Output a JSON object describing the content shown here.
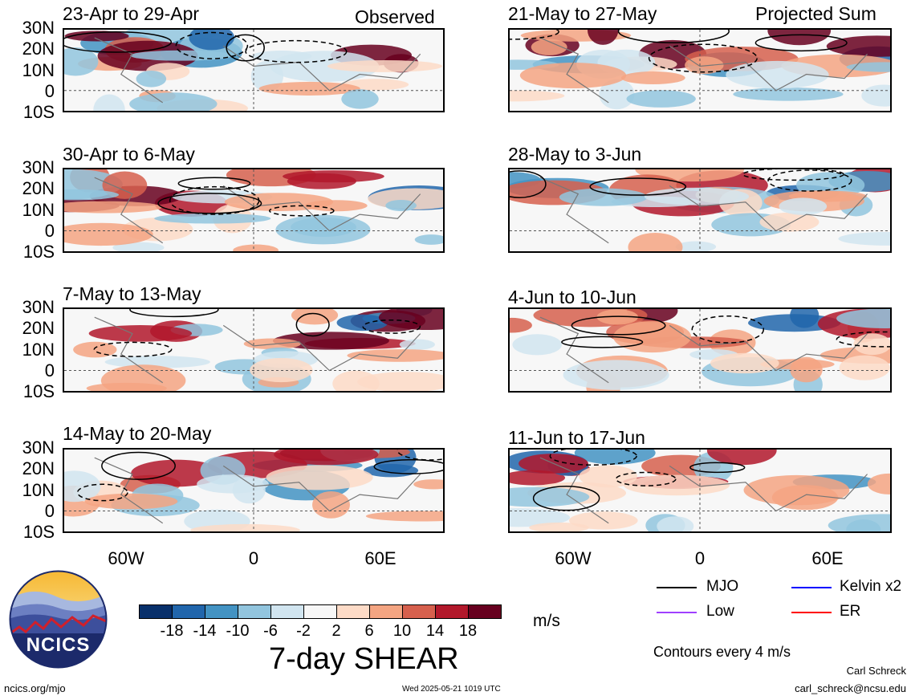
{
  "header": {
    "left_label": "Observed",
    "right_label": "Projected Sum"
  },
  "panels": [
    {
      "title": "23-Apr to 29-Apr"
    },
    {
      "title": "21-May to 27-May"
    },
    {
      "title": "30-Apr to 6-May"
    },
    {
      "title": "28-May to 3-Jun"
    },
    {
      "title": "7-May to 13-May"
    },
    {
      "title": "4-Jun to 10-Jun"
    },
    {
      "title": "14-May to 20-May"
    },
    {
      "title": "11-Jun to 17-Jun"
    }
  ],
  "lat_labels": [
    "30N",
    "20N",
    "10N",
    "0",
    "10S"
  ],
  "lon_labels": [
    "60W",
    "0",
    "60E"
  ],
  "colorbar": {
    "colors": [
      "#08306b",
      "#2166ac",
      "#4393c3",
      "#92c5de",
      "#d1e5f0",
      "#f7f7f7",
      "#fddbc7",
      "#f4a582",
      "#d6604d",
      "#b2182b",
      "#67001f"
    ],
    "ticks": [
      "-18",
      "-14",
      "-10",
      "-6",
      "-2",
      "2",
      "6",
      "10",
      "14",
      "18"
    ],
    "units": "m/s",
    "title": "7-day SHEAR"
  },
  "legend": {
    "items": [
      {
        "label": "MJO",
        "color": "#000000"
      },
      {
        "label": "Kelvin x2",
        "color": "#0000ff"
      },
      {
        "label": "Low",
        "color": "#a040ff"
      },
      {
        "label": "ER",
        "color": "#ff0000"
      }
    ],
    "contour_note": "Contours every 4 m/s"
  },
  "footer": {
    "logo_text": "NCICS",
    "url": "ncics.org/mjo",
    "timestamp": "Wed 2025-05-21 1019 UTC",
    "author": "Carl Schreck",
    "email": "carl_schreck@ncsu.edu"
  }
}
